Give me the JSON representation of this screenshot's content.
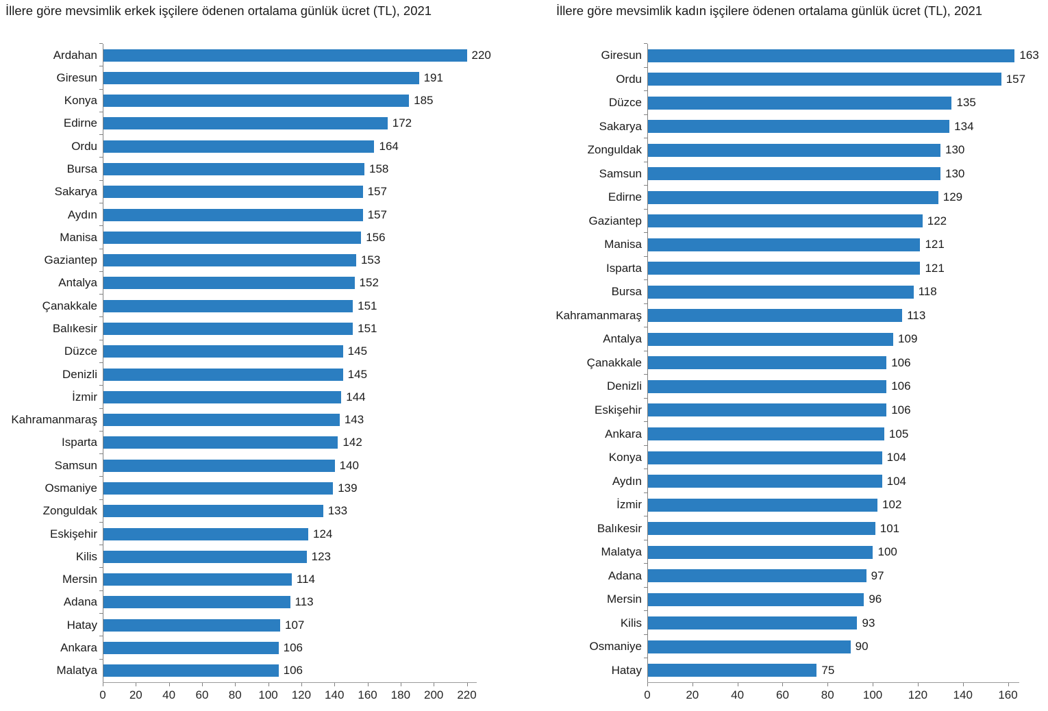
{
  "colors": {
    "bar": "#2b7ec1",
    "axis_line": "#808080",
    "x_axis_line": "#9a9a9a",
    "text": "#1a1a1a"
  },
  "chart_data": [
    {
      "type": "bar",
      "orientation": "horizontal",
      "title": "İllere göre mevsimlik erkek işçilere ödenen ortalama günlük ücret (TL), 2021",
      "xlabel": "",
      "ylabel": "",
      "grid": false,
      "legend": false,
      "categories": [
        "Ardahan",
        "Giresun",
        "Konya",
        "Edirne",
        "Ordu",
        "Bursa",
        "Sakarya",
        "Aydın",
        "Manisa",
        "Gaziantep",
        "Antalya",
        "Çanakkale",
        "Balıkesir",
        "Düzce",
        "Denizli",
        "İzmir",
        "Kahramanmaraş",
        "Isparta",
        "Samsun",
        "Osmaniye",
        "Zonguldak",
        "Eskişehir",
        "Kilis",
        "Mersin",
        "Adana",
        "Hatay",
        "Ankara",
        "Malatya"
      ],
      "values": [
        220,
        191,
        185,
        172,
        164,
        158,
        157,
        157,
        156,
        153,
        152,
        151,
        151,
        145,
        145,
        144,
        143,
        142,
        140,
        139,
        133,
        124,
        123,
        114,
        113,
        107,
        106,
        106
      ],
      "x_axis": {
        "ticks": [
          0,
          20,
          40,
          60,
          80,
          100,
          120,
          140,
          160,
          180,
          200,
          220
        ],
        "tick_min": 0,
        "tick_max": 220,
        "plot_max": 226
      }
    },
    {
      "type": "bar",
      "orientation": "horizontal",
      "title": "İllere göre mevsimlik kadın işçilere ödenen ortalama günlük ücret (TL), 2021",
      "xlabel": "",
      "ylabel": "",
      "grid": false,
      "legend": false,
      "categories": [
        "Giresun",
        "Ordu",
        "Düzce",
        "Sakarya",
        "Zonguldak",
        "Samsun",
        "Edirne",
        "Gaziantep",
        "Manisa",
        "Isparta",
        "Bursa",
        "Kahramanmaraş",
        "Antalya",
        "Çanakkale",
        "Denizli",
        "Eskişehir",
        "Ankara",
        "Konya",
        "Aydın",
        "İzmir",
        "Balıkesir",
        "Malatya",
        "Adana",
        "Mersin",
        "Kilis",
        "Osmaniye",
        "Hatay"
      ],
      "values": [
        163,
        157,
        135,
        134,
        130,
        130,
        129,
        122,
        121,
        121,
        118,
        113,
        109,
        106,
        106,
        106,
        105,
        104,
        104,
        102,
        101,
        100,
        97,
        96,
        93,
        90,
        75
      ],
      "x_axis": {
        "ticks": [
          0,
          20,
          40,
          60,
          80,
          100,
          120,
          140,
          160
        ],
        "tick_min": 0,
        "tick_max": 160,
        "plot_max": 165
      }
    }
  ]
}
